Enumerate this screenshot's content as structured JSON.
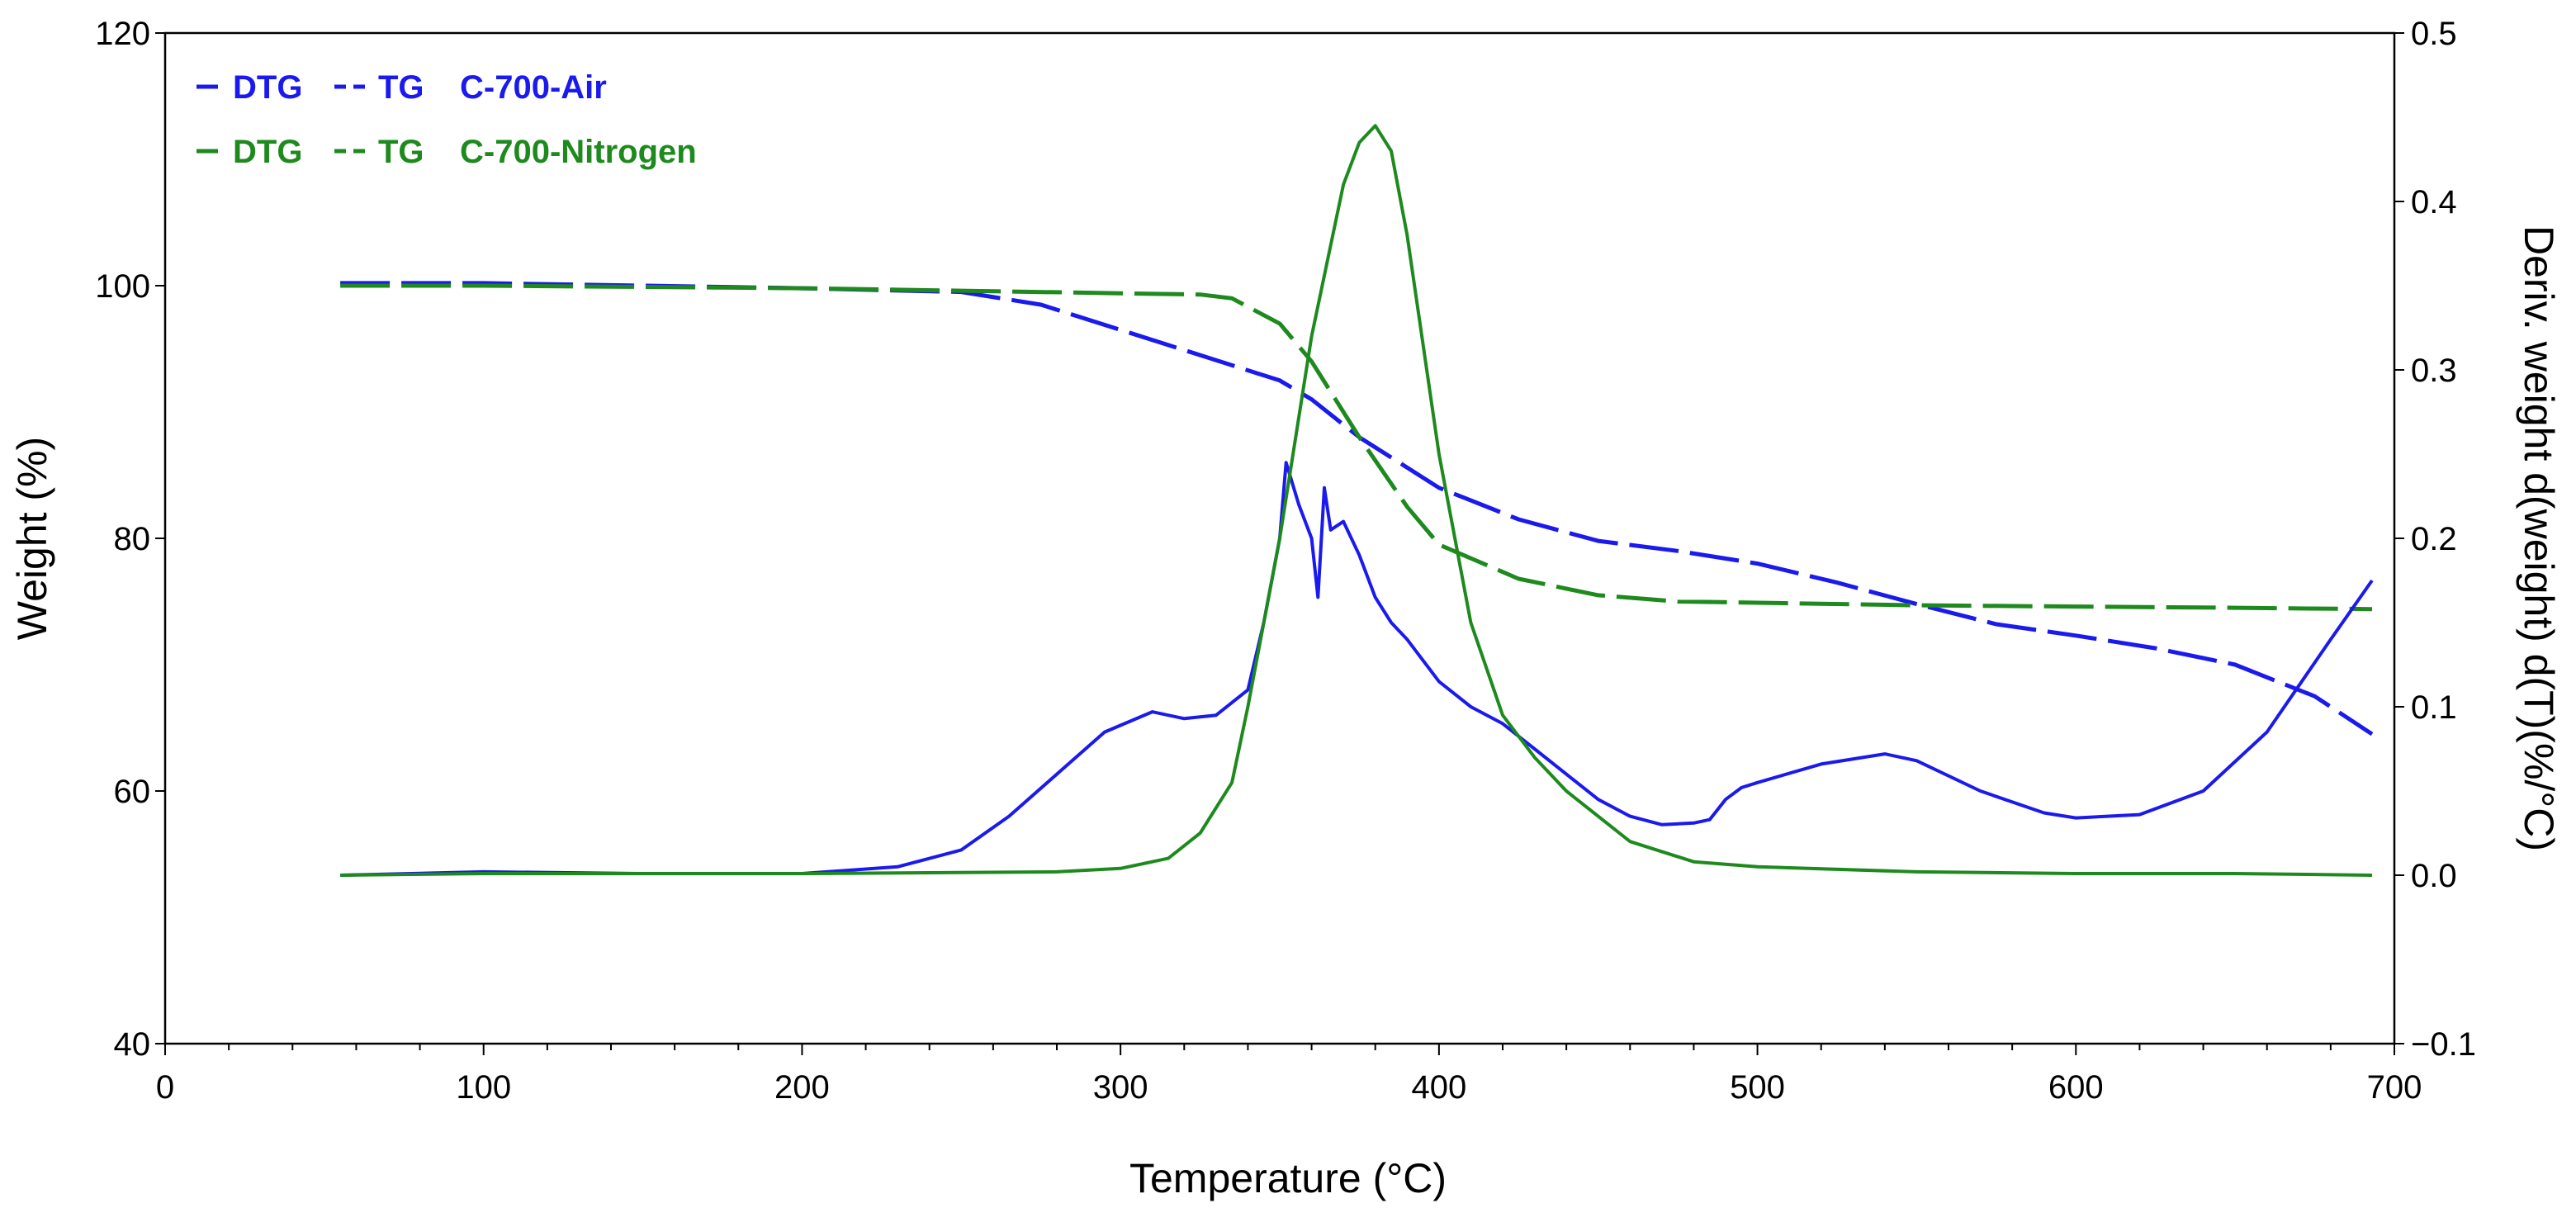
{
  "chart_data": {
    "type": "line",
    "title": "",
    "xlabel": "Temperature (°C)",
    "ylabel_left": "Weight (%)",
    "ylabel_right": "Deriv. weight d(weight) d(T)(%/°C)",
    "xlim": [
      0,
      700
    ],
    "ylim_left": [
      40,
      120
    ],
    "ylim_right": [
      -0.1,
      0.5
    ],
    "x_ticks": [
      "0",
      "100",
      "200",
      "300",
      "400",
      "500",
      "600",
      "700"
    ],
    "y_ticks_left": [
      "40",
      "60",
      "80",
      "100",
      "120"
    ],
    "y_ticks_right": [
      "−0.1",
      "0.0",
      "0.1",
      "0.2",
      "0.3",
      "0.4",
      "0.5"
    ],
    "grid": false,
    "legend_position": "top-left",
    "legend": [
      {
        "dtg_label": "DTG",
        "tg_label": "TG",
        "sample": "C-700-Air",
        "color": "#1a1aee"
      },
      {
        "dtg_label": "DTG",
        "tg_label": "TG",
        "sample": "C-700-Nitrogen",
        "color": "#1e8a1e"
      }
    ],
    "series": [
      {
        "name": "C-700-Air TG",
        "axis": "left",
        "style": "dashed",
        "color": "#1a1aee",
        "x": [
          55,
          100,
          150,
          200,
          250,
          275,
          300,
          325,
          350,
          360,
          375,
          400,
          425,
          450,
          475,
          500,
          525,
          550,
          575,
          600,
          625,
          650,
          675,
          693
        ],
        "y": [
          100.2,
          100.2,
          100.0,
          99.8,
          99.5,
          98.5,
          96.5,
          94.5,
          92.5,
          91.0,
          88.0,
          84.0,
          81.5,
          79.8,
          79.0,
          78.0,
          76.5,
          74.8,
          73.2,
          72.3,
          71.3,
          70.0,
          67.5,
          64.5
        ]
      },
      {
        "name": "C-700-Nitrogen TG",
        "axis": "left",
        "style": "dashed",
        "color": "#1e8a1e",
        "x": [
          55,
          100,
          150,
          200,
          250,
          300,
          325,
          335,
          350,
          360,
          375,
          390,
          400,
          425,
          450,
          475,
          500,
          550,
          600,
          650,
          693
        ],
        "y": [
          100.0,
          100.0,
          99.9,
          99.8,
          99.6,
          99.4,
          99.3,
          99.0,
          97.0,
          94.0,
          88.0,
          82.5,
          79.5,
          76.8,
          75.5,
          75.0,
          74.9,
          74.7,
          74.6,
          74.5,
          74.4
        ]
      },
      {
        "name": "C-700-Air DTG",
        "axis": "right",
        "style": "solid",
        "color": "#1a1aee",
        "x": [
          55,
          100,
          150,
          200,
          230,
          250,
          265,
          280,
          295,
          310,
          320,
          330,
          340,
          345,
          350,
          352,
          356,
          360,
          362,
          364,
          366,
          370,
          375,
          380,
          385,
          390,
          400,
          410,
          420,
          430,
          440,
          450,
          460,
          470,
          480,
          485,
          490,
          495,
          500,
          520,
          540,
          550,
          570,
          590,
          600,
          620,
          640,
          660,
          680,
          693
        ],
        "y": [
          0.0,
          0.002,
          0.001,
          0.001,
          0.005,
          0.015,
          0.035,
          0.06,
          0.085,
          0.097,
          0.093,
          0.095,
          0.11,
          0.15,
          0.2,
          0.245,
          0.22,
          0.2,
          0.165,
          0.23,
          0.205,
          0.21,
          0.19,
          0.165,
          0.15,
          0.14,
          0.115,
          0.1,
          0.09,
          0.075,
          0.06,
          0.045,
          0.035,
          0.03,
          0.031,
          0.033,
          0.045,
          0.052,
          0.055,
          0.066,
          0.072,
          0.068,
          0.05,
          0.037,
          0.034,
          0.036,
          0.05,
          0.085,
          0.14,
          0.175
        ]
      },
      {
        "name": "C-700-Nitrogen DTG",
        "axis": "right",
        "style": "solid",
        "color": "#1e8a1e",
        "x": [
          55,
          100,
          200,
          280,
          300,
          315,
          325,
          335,
          340,
          350,
          360,
          370,
          375,
          380,
          385,
          390,
          400,
          410,
          420,
          430,
          440,
          460,
          480,
          500,
          550,
          600,
          650,
          693
        ],
        "y": [
          0.0,
          0.001,
          0.001,
          0.002,
          0.004,
          0.01,
          0.025,
          0.055,
          0.1,
          0.2,
          0.32,
          0.41,
          0.435,
          0.445,
          0.43,
          0.38,
          0.25,
          0.15,
          0.095,
          0.07,
          0.05,
          0.02,
          0.008,
          0.005,
          0.002,
          0.001,
          0.001,
          0.0
        ]
      }
    ]
  }
}
